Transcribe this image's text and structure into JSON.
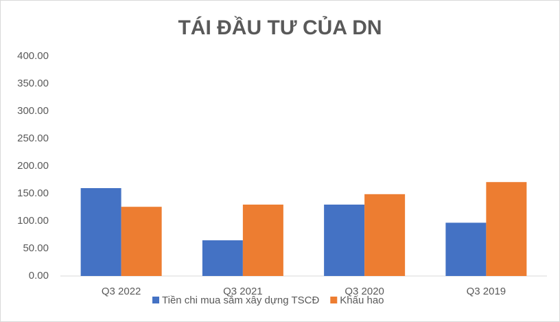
{
  "chart_data": {
    "type": "bar",
    "title": "TÁI ĐẦU TƯ CỦA DN",
    "categories": [
      "Q3 2022",
      "Q3 2021",
      "Q3 2020",
      "Q3 2019"
    ],
    "series": [
      {
        "name": "Tiền chi mua sắm xây dựng TSCĐ",
        "color": "#4472c4",
        "values": [
          160,
          65,
          130,
          97
        ]
      },
      {
        "name": "Khấu hao",
        "color": "#ed7d31",
        "values": [
          126,
          130,
          149,
          171
        ]
      }
    ],
    "ylim": [
      0,
      400
    ],
    "yticks": [
      {
        "value": 0,
        "label": "0.00"
      },
      {
        "value": 50,
        "label": "50.00"
      },
      {
        "value": 100,
        "label": "100.00"
      },
      {
        "value": 150,
        "label": "150.00"
      },
      {
        "value": 200,
        "label": "200.00"
      },
      {
        "value": 250,
        "label": "250.00"
      },
      {
        "value": 300,
        "label": "300.00"
      },
      {
        "value": 350,
        "label": "350.00"
      },
      {
        "value": 400,
        "label": "400.00"
      }
    ],
    "grid": false,
    "legend": "bottom"
  }
}
